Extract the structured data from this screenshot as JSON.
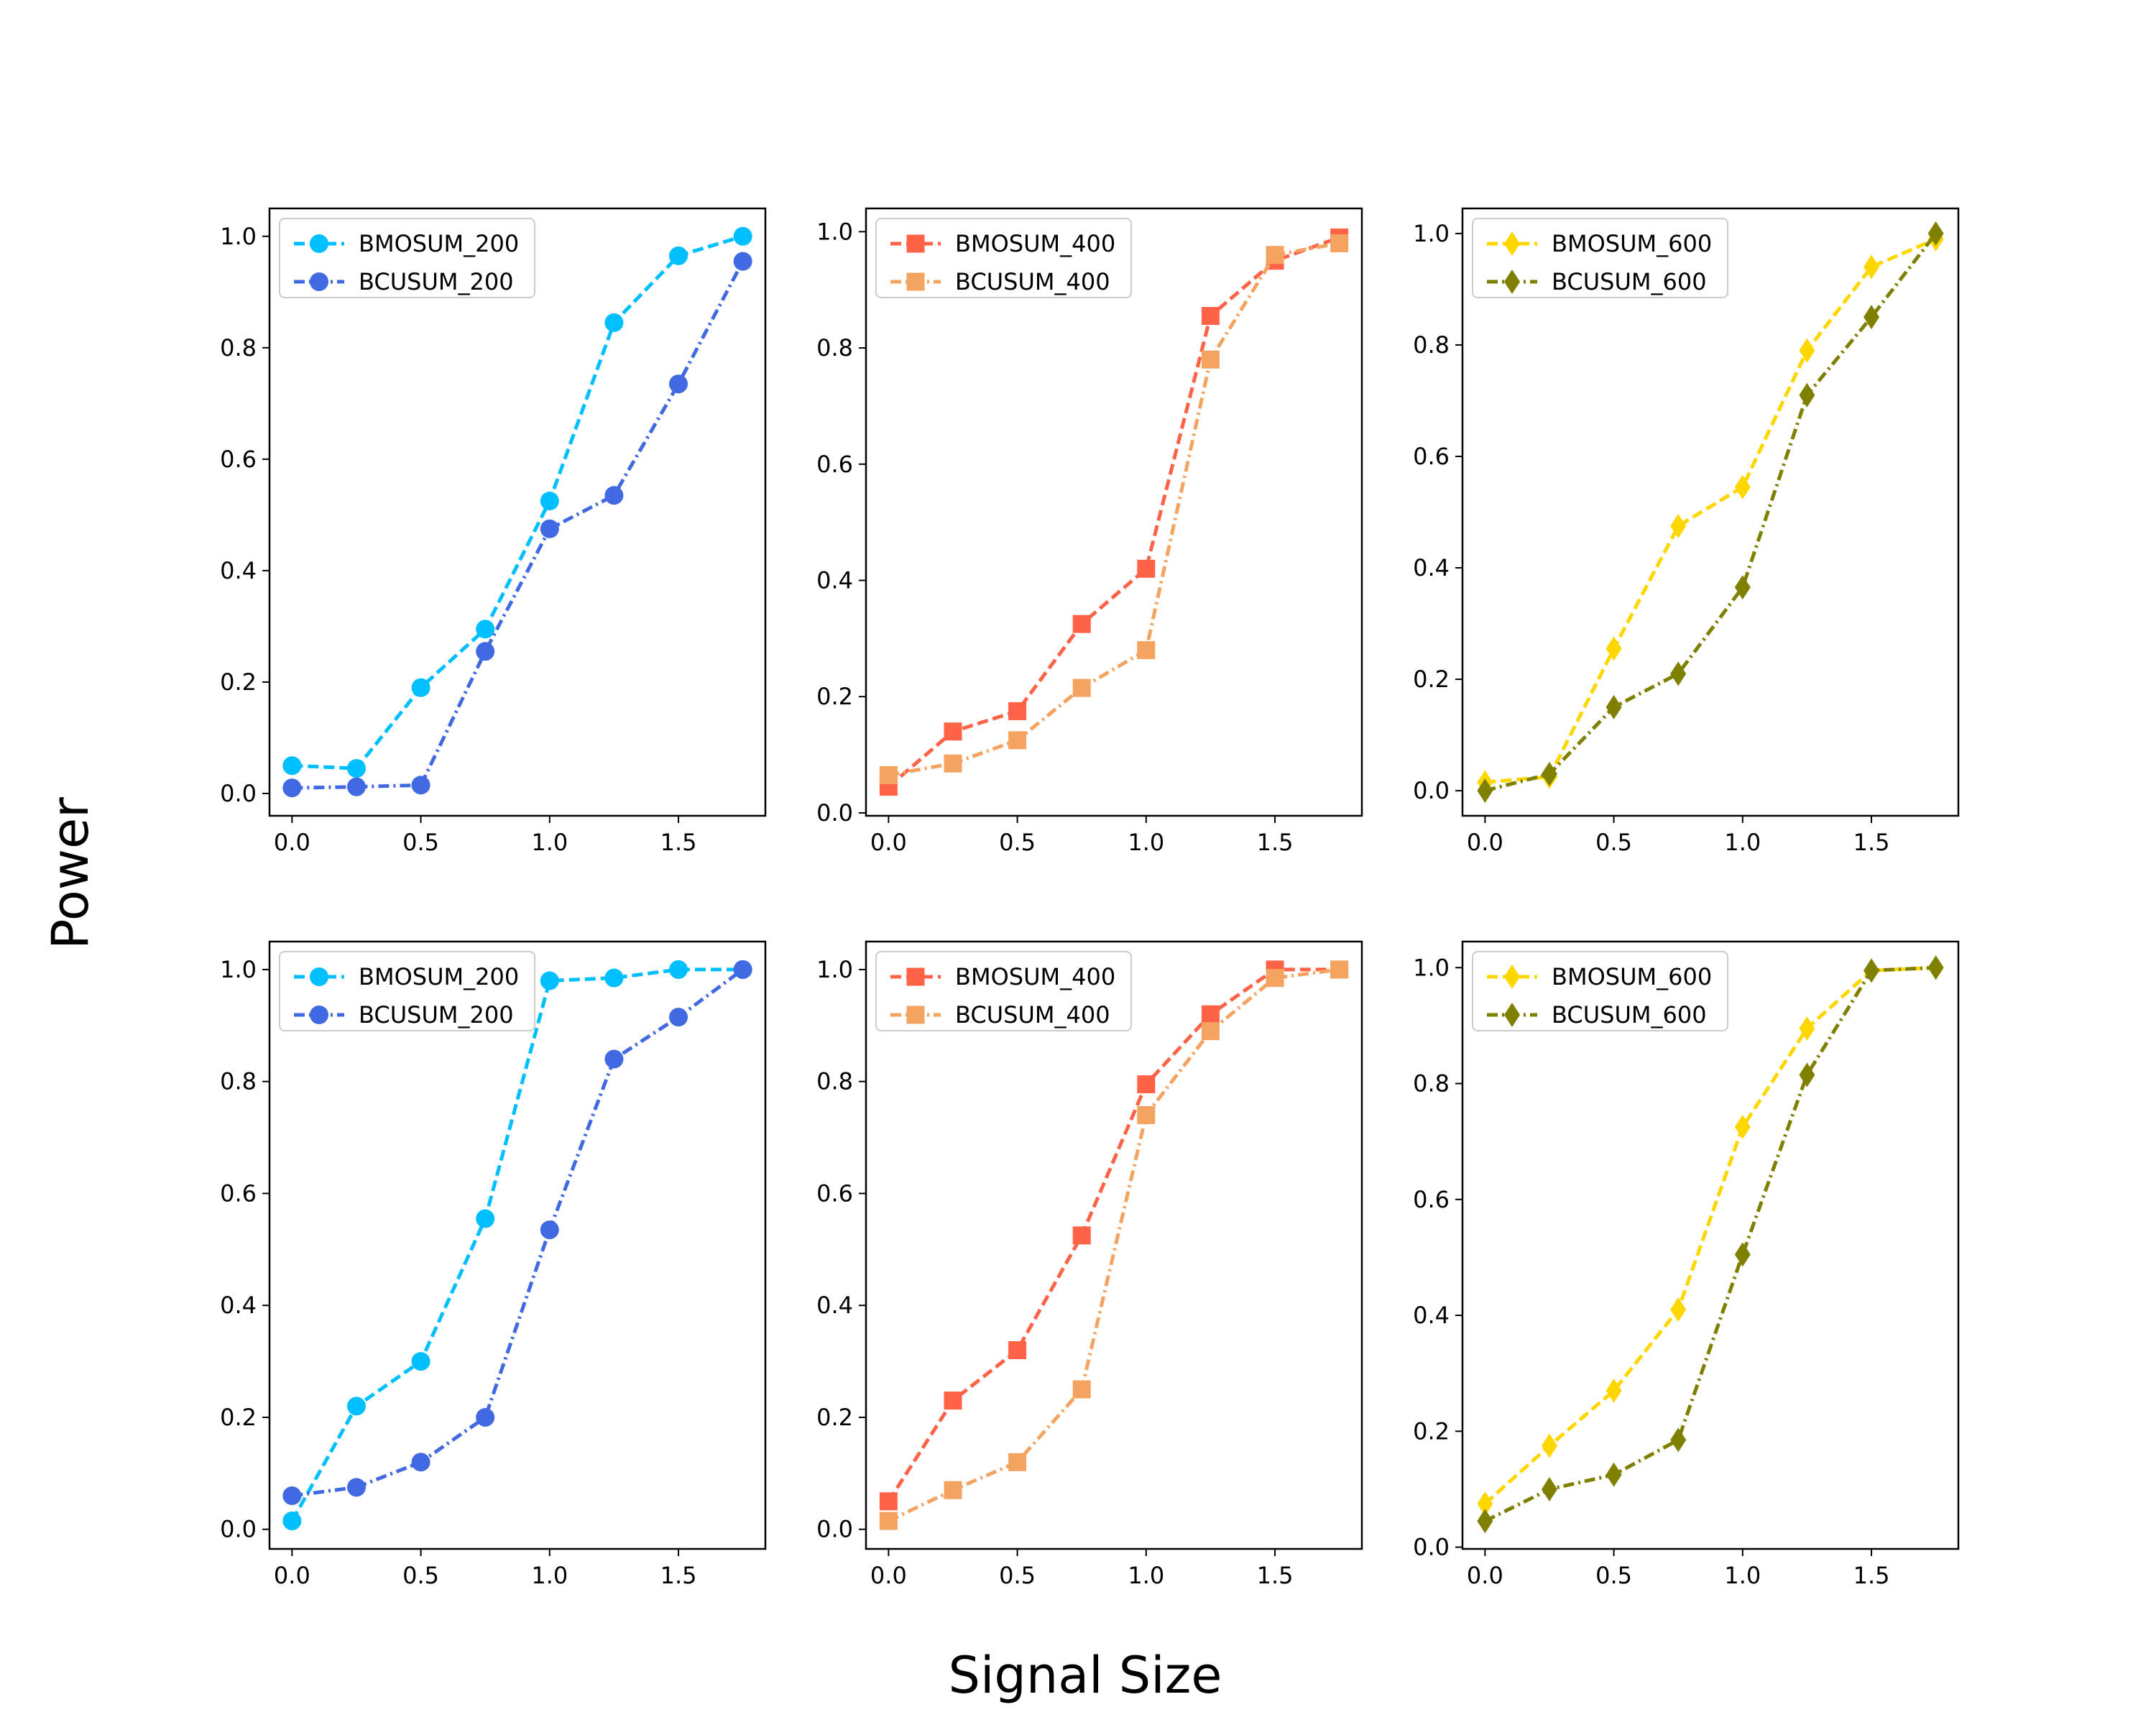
{
  "figure": {
    "supxlabel": "Signal Size",
    "supylabel": "Power"
  },
  "chart_data": [
    {
      "type": "line",
      "legend_position": "upper-left",
      "grid": false,
      "xlim": [
        -0.0875,
        1.8375
      ],
      "ylim": [
        -0.04,
        1.05
      ],
      "x_ticks": [
        "0.0",
        "0.5",
        "1.0",
        "1.5"
      ],
      "y_ticks": [
        "0.0",
        "0.2",
        "0.4",
        "0.6",
        "0.8",
        "1.0"
      ],
      "x": [
        0.0,
        0.25,
        0.5,
        0.75,
        1.0,
        1.25,
        1.5,
        1.75
      ],
      "series": [
        {
          "name": "BMOSUM_200",
          "color": "#00bfff",
          "marker": "circle",
          "linestyle": "dashed",
          "values": [
            0.05,
            0.045,
            0.19,
            0.295,
            0.525,
            0.845,
            0.965,
            1.0
          ]
        },
        {
          "name": "BCUSUM_200",
          "color": "#4169e1",
          "marker": "circle",
          "linestyle": "dashdot",
          "values": [
            0.01,
            0.012,
            0.015,
            0.255,
            0.475,
            0.535,
            0.735,
            0.955
          ]
        }
      ]
    },
    {
      "type": "line",
      "legend_position": "upper-left",
      "grid": false,
      "xlim": [
        -0.0875,
        1.8375
      ],
      "ylim": [
        -0.005,
        1.04
      ],
      "x_ticks": [
        "0.0",
        "0.5",
        "1.0",
        "1.5"
      ],
      "y_ticks": [
        "0.0",
        "0.2",
        "0.4",
        "0.6",
        "0.8",
        "1.0"
      ],
      "x": [
        0.0,
        0.25,
        0.5,
        0.75,
        1.0,
        1.25,
        1.5,
        1.75
      ],
      "series": [
        {
          "name": "BMOSUM_400",
          "color": "#ff6347",
          "marker": "square",
          "linestyle": "dashed",
          "values": [
            0.045,
            0.14,
            0.175,
            0.325,
            0.42,
            0.855,
            0.95,
            0.99
          ]
        },
        {
          "name": "BCUSUM_400",
          "color": "#f4a460",
          "marker": "square",
          "linestyle": "dashdot",
          "values": [
            0.065,
            0.085,
            0.125,
            0.215,
            0.28,
            0.78,
            0.96,
            0.98
          ]
        }
      ]
    },
    {
      "type": "line",
      "legend_position": "upper-left",
      "grid": false,
      "xlim": [
        -0.0875,
        1.8375
      ],
      "ylim": [
        -0.045,
        1.045
      ],
      "x_ticks": [
        "0.0",
        "0.5",
        "1.0",
        "1.5"
      ],
      "y_ticks": [
        "0.0",
        "0.2",
        "0.4",
        "0.6",
        "0.8",
        "1.0"
      ],
      "x": [
        0.0,
        0.25,
        0.5,
        0.75,
        1.0,
        1.25,
        1.5,
        1.75
      ],
      "series": [
        {
          "name": "BMOSUM_600",
          "color": "#ffd700",
          "marker": "diamond",
          "linestyle": "dashed",
          "values": [
            0.015,
            0.025,
            0.255,
            0.475,
            0.545,
            0.79,
            0.94,
            0.99
          ]
        },
        {
          "name": "BCUSUM_600",
          "color": "#808000",
          "marker": "diamond",
          "linestyle": "dashdot",
          "values": [
            0.0,
            0.03,
            0.15,
            0.21,
            0.365,
            0.71,
            0.85,
            1.0
          ]
        }
      ]
    },
    {
      "type": "line",
      "legend_position": "upper-left",
      "grid": false,
      "xlim": [
        -0.0875,
        1.8375
      ],
      "ylim": [
        -0.035,
        1.05
      ],
      "x_ticks": [
        "0.0",
        "0.5",
        "1.0",
        "1.5"
      ],
      "y_ticks": [
        "0.0",
        "0.2",
        "0.4",
        "0.6",
        "0.8",
        "1.0"
      ],
      "x": [
        0.0,
        0.25,
        0.5,
        0.75,
        1.0,
        1.25,
        1.5,
        1.75
      ],
      "series": [
        {
          "name": "BMOSUM_200",
          "color": "#00bfff",
          "marker": "circle",
          "linestyle": "dashed",
          "values": [
            0.015,
            0.22,
            0.3,
            0.555,
            0.98,
            0.985,
            1.0,
            1.0
          ]
        },
        {
          "name": "BCUSUM_200",
          "color": "#4169e1",
          "marker": "circle",
          "linestyle": "dashdot",
          "values": [
            0.06,
            0.075,
            0.12,
            0.2,
            0.535,
            0.84,
            0.915,
            1.0
          ]
        }
      ]
    },
    {
      "type": "line",
      "legend_position": "upper-left",
      "grid": false,
      "xlim": [
        -0.0875,
        1.8375
      ],
      "ylim": [
        -0.035,
        1.05
      ],
      "x_ticks": [
        "0.0",
        "0.5",
        "1.0",
        "1.5"
      ],
      "y_ticks": [
        "0.0",
        "0.2",
        "0.4",
        "0.6",
        "0.8",
        "1.0"
      ],
      "x": [
        0.0,
        0.25,
        0.5,
        0.75,
        1.0,
        1.25,
        1.5,
        1.75
      ],
      "series": [
        {
          "name": "BMOSUM_400",
          "color": "#ff6347",
          "marker": "square",
          "linestyle": "dashed",
          "values": [
            0.05,
            0.23,
            0.32,
            0.525,
            0.795,
            0.92,
            1.0,
            1.0
          ]
        },
        {
          "name": "BCUSUM_400",
          "color": "#f4a460",
          "marker": "square",
          "linestyle": "dashdot",
          "values": [
            0.015,
            0.07,
            0.12,
            0.25,
            0.74,
            0.89,
            0.985,
            1.0
          ]
        }
      ]
    },
    {
      "type": "line",
      "legend_position": "upper-left",
      "grid": false,
      "xlim": [
        -0.0875,
        1.8375
      ],
      "ylim": [
        -0.003,
        1.045
      ],
      "x_ticks": [
        "0.0",
        "0.5",
        "1.0",
        "1.5"
      ],
      "y_ticks": [
        "0.0",
        "0.2",
        "0.4",
        "0.6",
        "0.8",
        "1.0"
      ],
      "x": [
        0.0,
        0.25,
        0.5,
        0.75,
        1.0,
        1.25,
        1.5,
        1.75
      ],
      "series": [
        {
          "name": "BMOSUM_600",
          "color": "#ffd700",
          "marker": "diamond",
          "linestyle": "dashed",
          "values": [
            0.075,
            0.175,
            0.27,
            0.41,
            0.725,
            0.895,
            0.995,
            1.0
          ]
        },
        {
          "name": "BCUSUM_600",
          "color": "#808000",
          "marker": "diamond",
          "linestyle": "dashdot",
          "values": [
            0.045,
            0.1,
            0.125,
            0.185,
            0.505,
            0.815,
            0.995,
            1.0
          ]
        }
      ]
    }
  ]
}
